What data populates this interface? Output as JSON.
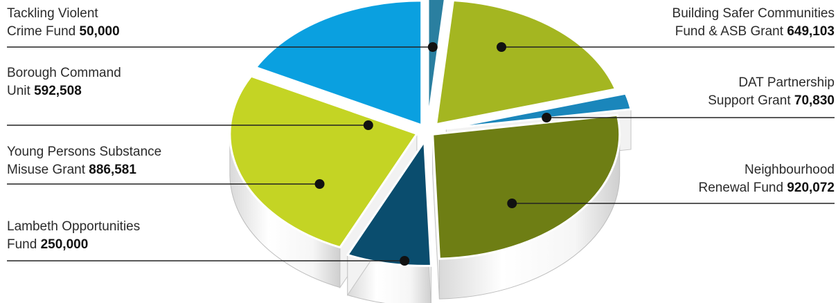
{
  "chart_data": {
    "type": "pie",
    "title": "",
    "colors": {
      "tackling_violent_crime": "#2a7fa0",
      "building_safer": "#a4b621",
      "dat_partnership": "#1a86bb",
      "neighbourhood_renewal": "#6e7e14",
      "lambeth_opportunities": "#0a4d6e",
      "young_persons": "#c4d424",
      "borough_command": "#0aa0e0"
    },
    "slices": [
      {
        "key": "tackling_violent_crime",
        "line1": "Tackling Violent",
        "line2": "Crime Fund ",
        "value_text": "50,000",
        "value": 50000
      },
      {
        "key": "building_safer",
        "line1": "Building Safer Communities",
        "line2": "Fund & ASB Gran",
        "line2b": "t ",
        "value_text": "649,103",
        "value": 649103
      },
      {
        "key": "dat_partnership",
        "line1": "DAT Partnership",
        "line2": "Support Grant ",
        "value_text": "70,830",
        "value": 70830
      },
      {
        "key": "neighbourhood_renewal",
        "line1": "Neighbourhood",
        "line2": "Renewal Fund ",
        "value_text": "920,072",
        "value": 920072
      },
      {
        "key": "lambeth_opportunities",
        "line1": "Lambeth Opportunities",
        "line2": "Fund ",
        "value_text": "250,000",
        "value": 250000
      },
      {
        "key": "young_persons",
        "line1": "Young Persons Substance",
        "line2": "Misuse Grant ",
        "value_text": "886,581",
        "value": 886581
      },
      {
        "key": "borough_command",
        "line1": "Borough Command",
        "line2": "Unit ",
        "value_text": "592,508",
        "value": 592508
      }
    ]
  }
}
